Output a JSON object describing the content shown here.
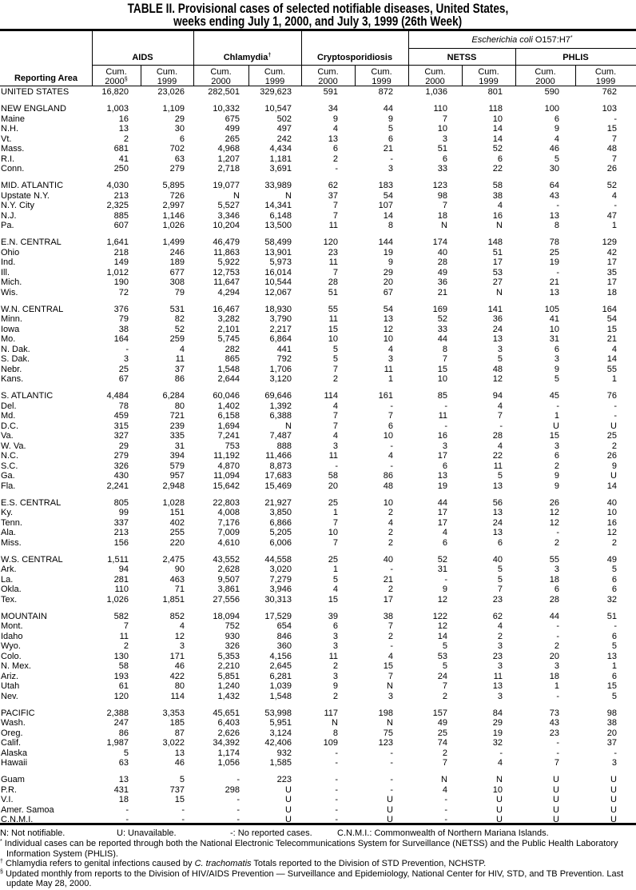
{
  "title": {
    "line1": "TABLE II. Provisional cases of selected notifiable diseases, United States,",
    "line2": "weeks ending July 1, 2000, and July 3, 1999 (26th Week)"
  },
  "header": {
    "reporting_area": "Reporting Area",
    "ecoli": "Escherichia coli",
    "ecoli_suffix": "O157:H7",
    "ecoli_mark": "*",
    "diseases": [
      "AIDS",
      "Chlamydia",
      "Cryptosporidiosis",
      "NETSS",
      "PHLIS"
    ],
    "chlamydia_mark": "†",
    "cum": "Cum.",
    "years": [
      "2000",
      "1999",
      "2000",
      "1999",
      "2000",
      "1999",
      "2000",
      "1999",
      "2000",
      "1999"
    ],
    "aids_2000_mark": "§"
  },
  "groups": [
    [
      [
        "UNITED STATES",
        "16,820",
        "23,026",
        "282,501",
        "329,623",
        "591",
        "872",
        "1,036",
        "801",
        "590",
        "762"
      ]
    ],
    [
      [
        "NEW ENGLAND",
        "1,003",
        "1,109",
        "10,332",
        "10,547",
        "34",
        "44",
        "110",
        "118",
        "100",
        "103"
      ],
      [
        "Maine",
        "16",
        "29",
        "675",
        "502",
        "9",
        "9",
        "7",
        "10",
        "6",
        "-"
      ],
      [
        "N.H.",
        "13",
        "30",
        "499",
        "497",
        "4",
        "5",
        "10",
        "14",
        "9",
        "15"
      ],
      [
        "Vt.",
        "2",
        "6",
        "265",
        "242",
        "13",
        "6",
        "3",
        "14",
        "4",
        "7"
      ],
      [
        "Mass.",
        "681",
        "702",
        "4,968",
        "4,434",
        "6",
        "21",
        "51",
        "52",
        "46",
        "48"
      ],
      [
        "R.I.",
        "41",
        "63",
        "1,207",
        "1,181",
        "2",
        "-",
        "6",
        "6",
        "5",
        "7"
      ],
      [
        "Conn.",
        "250",
        "279",
        "2,718",
        "3,691",
        "-",
        "3",
        "33",
        "22",
        "30",
        "26"
      ]
    ],
    [
      [
        "MID. ATLANTIC",
        "4,030",
        "5,895",
        "19,077",
        "33,989",
        "62",
        "183",
        "123",
        "58",
        "64",
        "52"
      ],
      [
        "Upstate N.Y.",
        "213",
        "726",
        "N",
        "N",
        "37",
        "54",
        "98",
        "38",
        "43",
        "4"
      ],
      [
        "N.Y. City",
        "2,325",
        "2,997",
        "5,527",
        "14,341",
        "7",
        "107",
        "7",
        "4",
        "-",
        "-"
      ],
      [
        "N.J.",
        "885",
        "1,146",
        "3,346",
        "6,148",
        "7",
        "14",
        "18",
        "16",
        "13",
        "47"
      ],
      [
        "Pa.",
        "607",
        "1,026",
        "10,204",
        "13,500",
        "11",
        "8",
        "N",
        "N",
        "8",
        "1"
      ]
    ],
    [
      [
        "E.N. CENTRAL",
        "1,641",
        "1,499",
        "46,479",
        "58,499",
        "120",
        "144",
        "174",
        "148",
        "78",
        "129"
      ],
      [
        "Ohio",
        "218",
        "246",
        "11,863",
        "13,901",
        "23",
        "19",
        "40",
        "51",
        "25",
        "42"
      ],
      [
        "Ind.",
        "149",
        "189",
        "5,922",
        "5,973",
        "11",
        "9",
        "28",
        "17",
        "19",
        "17"
      ],
      [
        "Ill.",
        "1,012",
        "677",
        "12,753",
        "16,014",
        "7",
        "29",
        "49",
        "53",
        "-",
        "35"
      ],
      [
        "Mich.",
        "190",
        "308",
        "11,647",
        "10,544",
        "28",
        "20",
        "36",
        "27",
        "21",
        "17"
      ],
      [
        "Wis.",
        "72",
        "79",
        "4,294",
        "12,067",
        "51",
        "67",
        "21",
        "N",
        "13",
        "18"
      ]
    ],
    [
      [
        "W.N. CENTRAL",
        "376",
        "531",
        "16,467",
        "18,930",
        "55",
        "54",
        "169",
        "141",
        "105",
        "164"
      ],
      [
        "Minn.",
        "79",
        "82",
        "3,282",
        "3,790",
        "11",
        "13",
        "52",
        "36",
        "41",
        "54"
      ],
      [
        "Iowa",
        "38",
        "52",
        "2,101",
        "2,217",
        "15",
        "12",
        "33",
        "24",
        "10",
        "15"
      ],
      [
        "Mo.",
        "164",
        "259",
        "5,745",
        "6,864",
        "10",
        "10",
        "44",
        "13",
        "31",
        "21"
      ],
      [
        "N. Dak.",
        "-",
        "4",
        "282",
        "441",
        "5",
        "4",
        "8",
        "3",
        "6",
        "4"
      ],
      [
        "S. Dak.",
        "3",
        "11",
        "865",
        "792",
        "5",
        "3",
        "7",
        "5",
        "3",
        "14"
      ],
      [
        "Nebr.",
        "25",
        "37",
        "1,548",
        "1,706",
        "7",
        "11",
        "15",
        "48",
        "9",
        "55"
      ],
      [
        "Kans.",
        "67",
        "86",
        "2,644",
        "3,120",
        "2",
        "1",
        "10",
        "12",
        "5",
        "1"
      ]
    ],
    [
      [
        "S. ATLANTIC",
        "4,484",
        "6,284",
        "60,046",
        "69,646",
        "114",
        "161",
        "85",
        "94",
        "45",
        "76"
      ],
      [
        "Del.",
        "78",
        "80",
        "1,402",
        "1,392",
        "4",
        "-",
        "-",
        "4",
        "-",
        "-"
      ],
      [
        "Md.",
        "459",
        "721",
        "6,158",
        "6,388",
        "7",
        "7",
        "11",
        "7",
        "1",
        "-"
      ],
      [
        "D.C.",
        "315",
        "239",
        "1,694",
        "N",
        "7",
        "6",
        "-",
        "-",
        "U",
        "U"
      ],
      [
        "Va.",
        "327",
        "335",
        "7,241",
        "7,487",
        "4",
        "10",
        "16",
        "28",
        "15",
        "25"
      ],
      [
        "W. Va.",
        "29",
        "31",
        "753",
        "888",
        "3",
        "-",
        "3",
        "4",
        "3",
        "2"
      ],
      [
        "N.C.",
        "279",
        "394",
        "11,192",
        "11,466",
        "11",
        "4",
        "17",
        "22",
        "6",
        "26"
      ],
      [
        "S.C.",
        "326",
        "579",
        "4,870",
        "8,873",
        "-",
        "-",
        "6",
        "11",
        "2",
        "9"
      ],
      [
        "Ga.",
        "430",
        "957",
        "11,094",
        "17,683",
        "58",
        "86",
        "13",
        "5",
        "9",
        "U"
      ],
      [
        "Fla.",
        "2,241",
        "2,948",
        "15,642",
        "15,469",
        "20",
        "48",
        "19",
        "13",
        "9",
        "14"
      ]
    ],
    [
      [
        "E.S. CENTRAL",
        "805",
        "1,028",
        "22,803",
        "21,927",
        "25",
        "10",
        "44",
        "56",
        "26",
        "40"
      ],
      [
        "Ky.",
        "99",
        "151",
        "4,008",
        "3,850",
        "1",
        "2",
        "17",
        "13",
        "12",
        "10"
      ],
      [
        "Tenn.",
        "337",
        "402",
        "7,176",
        "6,866",
        "7",
        "4",
        "17",
        "24",
        "12",
        "16"
      ],
      [
        "Ala.",
        "213",
        "255",
        "7,009",
        "5,205",
        "10",
        "2",
        "4",
        "13",
        "-",
        "12"
      ],
      [
        "Miss.",
        "156",
        "220",
        "4,610",
        "6,006",
        "7",
        "2",
        "6",
        "6",
        "2",
        "2"
      ]
    ],
    [
      [
        "W.S. CENTRAL",
        "1,511",
        "2,475",
        "43,552",
        "44,558",
        "25",
        "40",
        "52",
        "40",
        "55",
        "49"
      ],
      [
        "Ark.",
        "94",
        "90",
        "2,628",
        "3,020",
        "1",
        "-",
        "31",
        "5",
        "3",
        "5"
      ],
      [
        "La.",
        "281",
        "463",
        "9,507",
        "7,279",
        "5",
        "21",
        "-",
        "5",
        "18",
        "6"
      ],
      [
        "Okla.",
        "110",
        "71",
        "3,861",
        "3,946",
        "4",
        "2",
        "9",
        "7",
        "6",
        "6"
      ],
      [
        "Tex.",
        "1,026",
        "1,851",
        "27,556",
        "30,313",
        "15",
        "17",
        "12",
        "23",
        "28",
        "32"
      ]
    ],
    [
      [
        "MOUNTAIN",
        "582",
        "852",
        "18,094",
        "17,529",
        "39",
        "38",
        "122",
        "62",
        "44",
        "51"
      ],
      [
        "Mont.",
        "7",
        "4",
        "752",
        "654",
        "6",
        "7",
        "12",
        "4",
        "-",
        "-"
      ],
      [
        "Idaho",
        "11",
        "12",
        "930",
        "846",
        "3",
        "2",
        "14",
        "2",
        "-",
        "6"
      ],
      [
        "Wyo.",
        "2",
        "3",
        "326",
        "360",
        "3",
        "-",
        "5",
        "3",
        "2",
        "5"
      ],
      [
        "Colo.",
        "130",
        "171",
        "5,353",
        "4,156",
        "11",
        "4",
        "53",
        "23",
        "20",
        "13"
      ],
      [
        "N. Mex.",
        "58",
        "46",
        "2,210",
        "2,645",
        "2",
        "15",
        "5",
        "3",
        "3",
        "1"
      ],
      [
        "Ariz.",
        "193",
        "422",
        "5,851",
        "6,281",
        "3",
        "7",
        "24",
        "11",
        "18",
        "6"
      ],
      [
        "Utah",
        "61",
        "80",
        "1,240",
        "1,039",
        "9",
        "N",
        "7",
        "13",
        "1",
        "15"
      ],
      [
        "Nev.",
        "120",
        "114",
        "1,432",
        "1,548",
        "2",
        "3",
        "2",
        "3",
        "-",
        "5"
      ]
    ],
    [
      [
        "PACIFIC",
        "2,388",
        "3,353",
        "45,651",
        "53,998",
        "117",
        "198",
        "157",
        "84",
        "73",
        "98"
      ],
      [
        "Wash.",
        "247",
        "185",
        "6,403",
        "5,951",
        "N",
        "N",
        "49",
        "29",
        "43",
        "38"
      ],
      [
        "Oreg.",
        "86",
        "87",
        "2,626",
        "3,124",
        "8",
        "75",
        "25",
        "19",
        "23",
        "20"
      ],
      [
        "Calif.",
        "1,987",
        "3,022",
        "34,392",
        "42,406",
        "109",
        "123",
        "74",
        "32",
        "-",
        "37"
      ],
      [
        "Alaska",
        "5",
        "13",
        "1,174",
        "932",
        "-",
        "-",
        "2",
        "-",
        "-",
        "-"
      ],
      [
        "Hawaii",
        "63",
        "46",
        "1,056",
        "1,585",
        "-",
        "-",
        "7",
        "4",
        "7",
        "3"
      ]
    ],
    [
      [
        "Guam",
        "13",
        "5",
        "-",
        "223",
        "-",
        "-",
        "N",
        "N",
        "U",
        "U"
      ],
      [
        "P.R.",
        "431",
        "737",
        "298",
        "U",
        "-",
        "-",
        "4",
        "10",
        "U",
        "U"
      ],
      [
        "V.I.",
        "18",
        "15",
        "-",
        "U",
        "-",
        "U",
        "-",
        "U",
        "U",
        "U"
      ],
      [
        "Amer. Samoa",
        "-",
        "-",
        "-",
        "U",
        "-",
        "U",
        "-",
        "U",
        "U",
        "U"
      ],
      [
        "C.N.M.I.",
        "-",
        "-",
        "-",
        "U",
        "-",
        "U",
        "-",
        "U",
        "U",
        "U"
      ]
    ]
  ],
  "footnotes": {
    "legend": [
      "N: Not notifiable.",
      "U: Unavailable.",
      "-: No reported cases.",
      "C.N.M.I.: Commonwealth of Northern Mariana Islands."
    ],
    "star_mark": "*",
    "star": "Individual cases can be reported through both the National Electronic Telecommunications System for Surveillance (NETSS) and the Public Health Laboratory Information System (PHLIS).",
    "dagger_mark": "†",
    "dagger_pre": "Chlamydia refers to genital infections caused by",
    "dagger_italic": "C. trachomatis",
    "dagger_post": "Totals reported to the Division of STD Prevention, NCHSTP.",
    "section_mark": "§",
    "section": "Updated monthly from reports to the Division of HIV/AIDS Prevention — Surveillance and Epidemiology, National Center for HIV, STD, and TB Prevention. Last update May 28, 2000."
  }
}
